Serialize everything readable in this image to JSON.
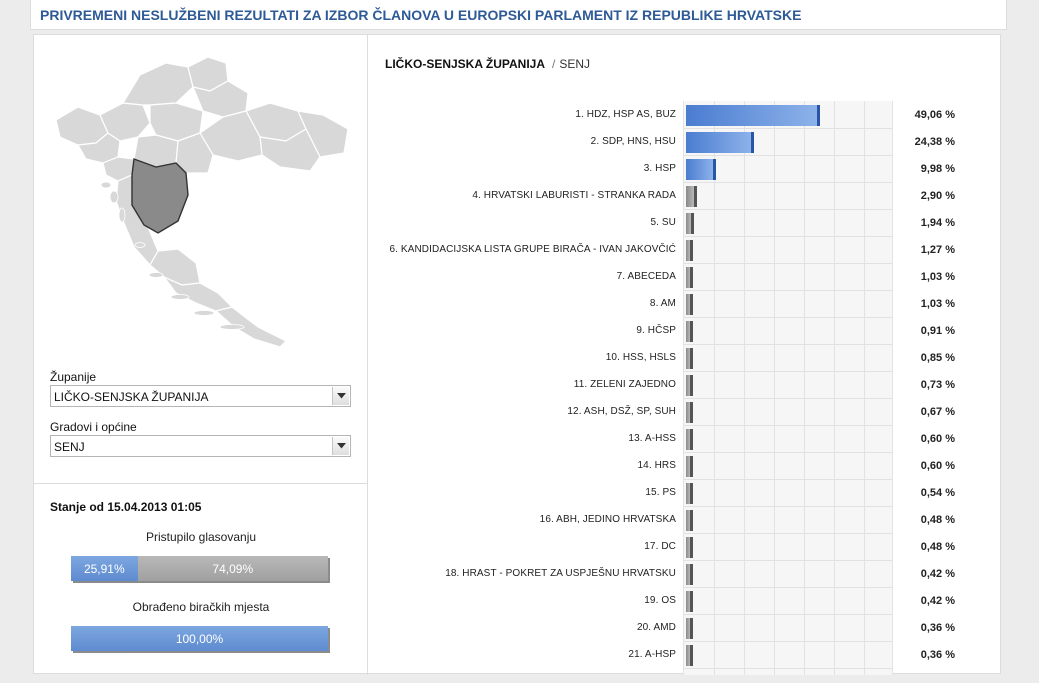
{
  "header": {
    "title": "PRIVREMENI NESLUŽBENI REZULTATI ZA IZBOR ČLANOVA U EUROPSKI PARLAMENT IZ REPUBLIKE HRVATSKE"
  },
  "filters": {
    "county_label": "Županije",
    "county_value": "LIČKO-SENJSKA ŽUPANIJA",
    "city_label": "Gradovi i općine",
    "city_value": "SENJ"
  },
  "status": {
    "title": "Stanje od 15.04.2013 01:05",
    "turnout_label": "Pristupilo glasovanju",
    "turnout_voted": "25,91%",
    "turnout_voted_fraction": 0.2591,
    "turnout_not_voted": "74,09%",
    "stations_label": "Obrađeno biračkih mjesta",
    "stations_processed": "100,00%",
    "stations_fraction": 1.0
  },
  "breadcrumb": {
    "county": "LIČKO-SENJSKA ŽUPANIJA",
    "separator": "/",
    "city": "SENJ"
  },
  "colors": {
    "title_blue": "#2e5a96",
    "bar_blue": "#5e8bd0",
    "bar_gray": "#a0a0a0",
    "map_gray": "#d8d8d8",
    "map_highlight": "#8a8a8a"
  },
  "chart_data": {
    "type": "bar",
    "orientation": "horizontal",
    "categories": [
      "1. HDZ, HSP AS, BUZ",
      "2. SDP, HNS, HSU",
      "3. HSP",
      "4. HRVATSKI LABURISTI - STRANKA RADA",
      "5. SU",
      "6. KANDIDACIJSKA LISTA GRUPE BIRAČA - IVAN JAKOVČIĆ",
      "7. ABECEDA",
      "8. AM",
      "9. HČSP",
      "10. HSS, HSLS",
      "11. ZELENI ZAJEDNO",
      "12. ASH, DSŽ, SP, SUH",
      "13. A-HSS",
      "14. HRS",
      "15. PS",
      "16. ABH, JEDINO HRVATSKA",
      "17. DC",
      "18. HRAST - POKRET ZA USPJEŠNU HRVATSKU",
      "19. OS",
      "20. AMD",
      "21. A-HSP"
    ],
    "values": [
      49.06,
      24.38,
      9.98,
      2.9,
      1.94,
      1.27,
      1.03,
      1.03,
      0.91,
      0.85,
      0.73,
      0.67,
      0.6,
      0.6,
      0.54,
      0.48,
      0.48,
      0.42,
      0.42,
      0.36,
      0.36
    ],
    "value_labels": [
      "49,06 %",
      "24,38 %",
      "9,98 %",
      "2,90 %",
      "1,94 %",
      "1,27 %",
      "1,03 %",
      "1,03 %",
      "0,91 %",
      "0,85 %",
      "0,73 %",
      "0,67 %",
      "0,60 %",
      "0,60 %",
      "0,54 %",
      "0,48 %",
      "0,48 %",
      "0,42 %",
      "0,42 %",
      "0,36 %",
      "0,36 %"
    ],
    "highlight_count": 3,
    "xlim": [
      0,
      100
    ],
    "grid": true
  }
}
